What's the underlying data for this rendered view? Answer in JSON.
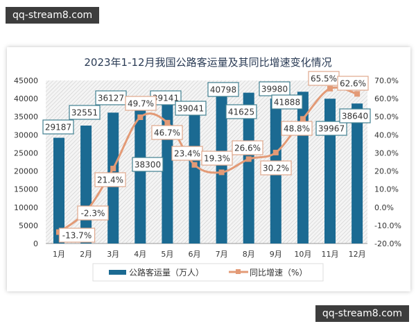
{
  "watermarks": [
    "qq-stream8.com",
    "qq-stream8.com"
  ],
  "colors": {
    "bar": "#1b6a92",
    "line": "#e39a76",
    "bar_label_border": "#3f7f90",
    "pct_label_border": "#e0a88c",
    "title": "#2a3b55"
  },
  "chart_data": {
    "type": "bar+line",
    "title": "2023年1-12月我国公路客运量及其同比增速变化情况",
    "categories": [
      "1月",
      "2月",
      "3月",
      "4月",
      "5月",
      "6月",
      "7月",
      "8月",
      "9月",
      "10月",
      "11月",
      "12月"
    ],
    "series": [
      {
        "name": "公路客运量（万人）",
        "type": "bar",
        "axis": "left",
        "values": [
          29187,
          32551,
          36127,
          38300,
          39141,
          39041,
          40798,
          41625,
          39980,
          41888,
          39967,
          38640
        ],
        "labels": [
          "29187",
          "32551",
          "36127",
          "38300",
          "39141",
          "39041",
          "40798",
          "41625",
          "39980",
          "41888",
          "39967",
          "38640"
        ]
      },
      {
        "name": "同比增速（%）",
        "type": "line",
        "axis": "right",
        "values": [
          -13.7,
          -2.3,
          21.4,
          49.7,
          46.7,
          23.4,
          19.3,
          26.6,
          30.2,
          48.8,
          65.5,
          62.6
        ],
        "labels": [
          "-13.7%",
          "-2.3%",
          "21.4%",
          "49.7%",
          "46.7%",
          "23.4%",
          "19.3%",
          "26.6%",
          "30.2%",
          "48.8%",
          "65.5%",
          "62.6%"
        ]
      }
    ],
    "left_axis": {
      "ylim": [
        0,
        45000
      ],
      "ticks": [
        "0",
        "5000",
        "10000",
        "15000",
        "20000",
        "25000",
        "30000",
        "35000",
        "40000",
        "45000"
      ]
    },
    "right_axis": {
      "ylim": [
        -20,
        70
      ],
      "ticks": [
        "-20.0%",
        "-10.0%",
        "0.0%",
        "10.0%",
        "20.0%",
        "30.0%",
        "40.0%",
        "50.0%",
        "60.0%",
        "70.0%"
      ]
    },
    "legend": {
      "position": "bottom",
      "items": [
        "公路客运量（万人）",
        "同比增速（%）"
      ]
    },
    "grid": false
  }
}
